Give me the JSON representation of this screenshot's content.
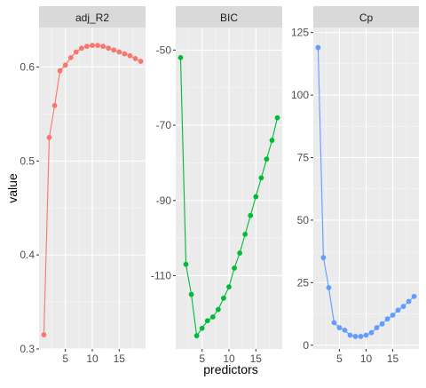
{
  "chart_data": {
    "type": "line",
    "facet_layout": "1 row x 3 columns, independent y scales",
    "xlabel": "predictors",
    "ylabel": "value",
    "grid": true,
    "legend": "none",
    "x": [
      1,
      2,
      3,
      4,
      5,
      6,
      7,
      8,
      9,
      10,
      11,
      12,
      13,
      14,
      15,
      16,
      17,
      18,
      19
    ],
    "x_ticks": [
      5,
      10,
      15
    ],
    "x_range": [
      0.1,
      19.9
    ],
    "panels": [
      {
        "strip_label": "adj_R2",
        "color": "#F8766D",
        "y_range": [
          0.3,
          0.642
        ],
        "y_ticks": [
          0.3,
          0.4,
          0.5,
          0.6
        ],
        "y_tick_labels": [
          "0.3",
          "0.4",
          "0.5",
          "0.6"
        ],
        "values": [
          0.315,
          0.525,
          0.559,
          0.596,
          0.602,
          0.61,
          0.616,
          0.62,
          0.622,
          0.623,
          0.623,
          0.622,
          0.62,
          0.618,
          0.616,
          0.614,
          0.612,
          0.609,
          0.606
        ]
      },
      {
        "strip_label": "BIC",
        "color": "#00BA38",
        "y_range": [
          -129.5,
          -44
        ],
        "y_ticks": [
          -110,
          -90,
          -70,
          -50
        ],
        "y_tick_labels": [
          "-110",
          "-90",
          "-70",
          "-50"
        ],
        "values": [
          -52,
          -107,
          -115,
          -126,
          -124,
          -122,
          -121,
          -119,
          -116,
          -113,
          -108,
          -104,
          -99,
          -94,
          -89,
          -84,
          -79,
          -74,
          -68
        ]
      },
      {
        "strip_label": "Cp",
        "color": "#619CFF",
        "y_range": [
          -1.5,
          127
        ],
        "y_ticks": [
          0,
          25,
          50,
          75,
          100,
          125
        ],
        "y_tick_labels": [
          "0",
          "25",
          "50",
          "75",
          "100",
          "125"
        ],
        "values": [
          119,
          35,
          23,
          9,
          7,
          6,
          4,
          3.5,
          3.5,
          4,
          5,
          7,
          8.5,
          10.5,
          12,
          14,
          15.5,
          17.5,
          19.5
        ]
      }
    ]
  }
}
